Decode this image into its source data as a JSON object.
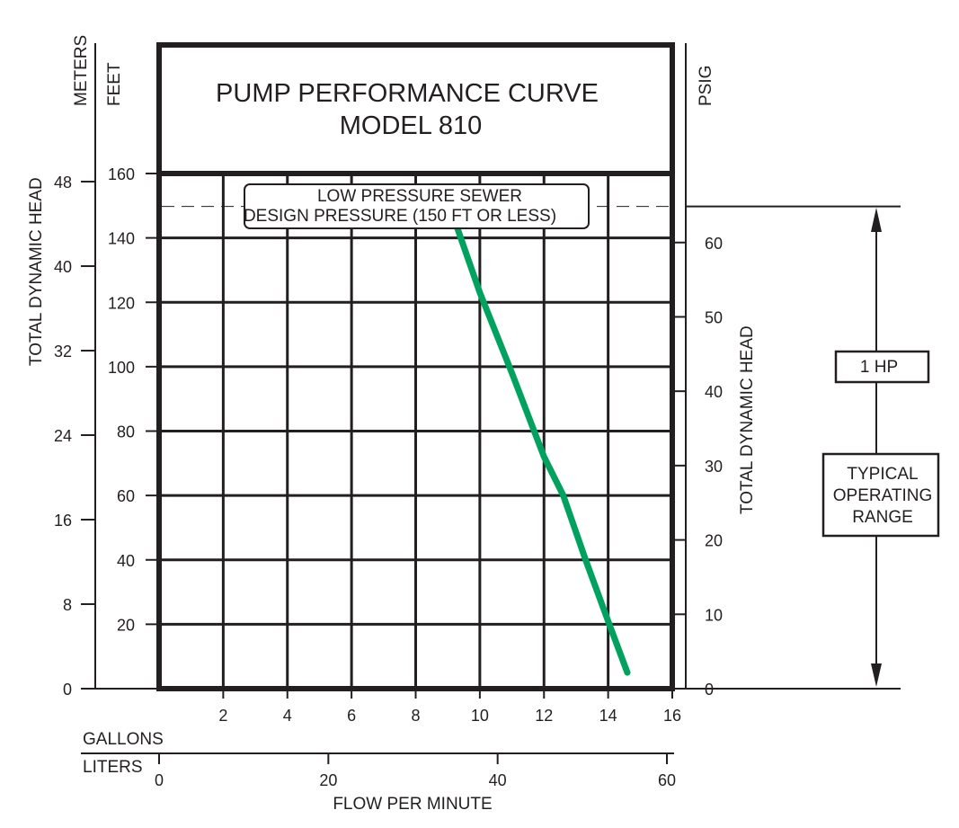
{
  "chart_data": {
    "type": "line",
    "title_lines": [
      "PUMP PERFORMANCE CURVE",
      "MODEL 810"
    ],
    "x_axis": {
      "label": "FLOW PER MINUTE",
      "gallons": {
        "label": "GALLONS",
        "range": [
          0,
          16
        ],
        "ticks": [
          2,
          4,
          6,
          8,
          10,
          12,
          14,
          16
        ]
      },
      "liters": {
        "label": "LITERS",
        "range": [
          0,
          60
        ],
        "ticks": [
          0,
          20,
          40,
          60
        ]
      }
    },
    "y_axis": {
      "label": "TOTAL DYNAMIC HEAD",
      "feet": {
        "unit": "FEET",
        "range": [
          0,
          160
        ],
        "ticks": [
          20,
          40,
          60,
          80,
          100,
          120,
          140,
          160
        ]
      },
      "meters": {
        "unit": "METERS",
        "ticks": [
          0,
          8,
          16,
          24,
          32,
          40,
          48
        ]
      },
      "psig": {
        "unit": "PSIG",
        "ticks": [
          0,
          10,
          20,
          30,
          40,
          50,
          60
        ]
      }
    },
    "series": [
      {
        "color": "#00a25e",
        "x": [
          9.3,
          10.0,
          11.0,
          12.0,
          12.6,
          13.3,
          14.0,
          14.6
        ],
        "y": [
          143,
          123,
          98,
          72,
          60,
          40,
          21,
          5
        ]
      }
    ],
    "design_pressure": {
      "value": 150,
      "lines": [
        "LOW PRESSURE SEWER",
        "DESIGN PRESSURE (150 FT OR LESS)"
      ]
    },
    "operating_range": {
      "range": [
        0,
        150
      ],
      "hp_label": "1 HP",
      "lines": [
        "TYPICAL",
        "OPERATING",
        "RANGE"
      ]
    },
    "grid": true
  }
}
